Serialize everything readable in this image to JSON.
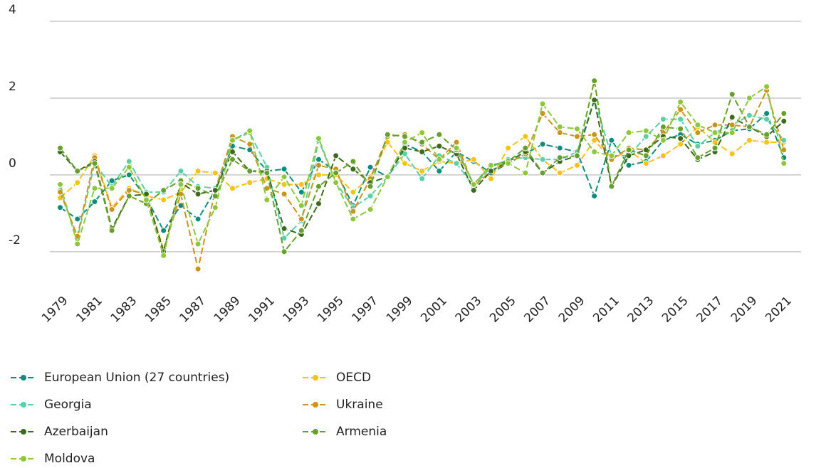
{
  "chart_data": {
    "type": "line",
    "x": [
      1979,
      1980,
      1981,
      1982,
      1983,
      1984,
      1985,
      1986,
      1987,
      1988,
      1989,
      1990,
      1991,
      1992,
      1993,
      1994,
      1995,
      1996,
      1997,
      1998,
      1999,
      2000,
      2001,
      2002,
      2003,
      2004,
      2005,
      2006,
      2007,
      2008,
      2009,
      2010,
      2011,
      2012,
      2013,
      2014,
      2015,
      2016,
      2017,
      2018,
      2019,
      2020,
      2021
    ],
    "xlim": [
      1978.4,
      2022
    ],
    "xticks": [
      1979,
      1981,
      1983,
      1985,
      1987,
      1989,
      1991,
      1993,
      1995,
      1997,
      1999,
      2001,
      2003,
      2005,
      2007,
      2009,
      2011,
      2013,
      2015,
      2017,
      2019,
      2021
    ],
    "ylim": [
      -2.8,
      4
    ],
    "yticks": [
      -2,
      0,
      2,
      4
    ],
    "grid": true,
    "line_style": "dashed",
    "legend": "bottom",
    "series": [
      {
        "name": "European Union (27 countries)",
        "color": "#0f8c7e",
        "values": [
          -0.85,
          -1.15,
          -0.7,
          -0.15,
          0.0,
          -0.6,
          -1.45,
          -0.8,
          -1.15,
          -0.4,
          0.75,
          0.65,
          0.1,
          0.15,
          -0.45,
          0.4,
          0.1,
          -0.8,
          0.2,
          -0.05,
          0.8,
          0.6,
          0.1,
          0.6,
          0.35,
          0.05,
          0.3,
          0.55,
          0.8,
          0.7,
          0.6,
          -0.55,
          0.9,
          0.25,
          0.35,
          0.9,
          1.05,
          0.8,
          0.9,
          1.15,
          1.2,
          1.6,
          0.45
        ]
      },
      {
        "name": "OECD",
        "color": "#f7c21a",
        "values": [
          -0.6,
          -0.2,
          0.5,
          -0.85,
          -0.35,
          -0.55,
          -0.65,
          -0.45,
          0.1,
          0.05,
          -0.35,
          -0.2,
          -0.1,
          -0.25,
          -0.25,
          0.0,
          0.0,
          -0.45,
          -0.05,
          0.85,
          0.3,
          0.1,
          0.35,
          0.3,
          0.4,
          -0.1,
          0.7,
          1.0,
          0.4,
          0.05,
          0.25,
          0.9,
          0.4,
          0.65,
          0.3,
          0.5,
          0.8,
          1.25,
          0.85,
          0.55,
          0.9,
          0.85,
          0.85
        ]
      },
      {
        "name": "Georgia",
        "color": "#5ccfa6",
        "values": [
          -0.4,
          -1.65,
          0.3,
          -0.3,
          0.35,
          -0.45,
          -0.45,
          0.1,
          -0.3,
          -0.35,
          0.9,
          1.1,
          0.2,
          -1.65,
          -1.2,
          0.9,
          -0.2,
          -0.85,
          -0.55,
          -0.05,
          0.55,
          -0.1,
          0.5,
          0.3,
          -0.3,
          0.2,
          0.4,
          0.45,
          0.4,
          0.4,
          0.6,
          1.95,
          0.5,
          0.5,
          1.0,
          1.45,
          1.45,
          0.75,
          1.1,
          1.3,
          1.55,
          1.45,
          0.9
        ]
      },
      {
        "name": "Ukraine",
        "color": "#c99520",
        "values": [
          -0.45,
          -1.6,
          0.45,
          -0.9,
          -0.4,
          -0.5,
          -1.95,
          -0.5,
          -2.45,
          -0.4,
          1.0,
          0.8,
          -0.35,
          -0.5,
          -1.15,
          0.25,
          0.15,
          -0.95,
          -0.1,
          1.0,
          1.05,
          0.8,
          0.4,
          0.85,
          -0.3,
          0.1,
          0.3,
          0.55,
          1.6,
          1.1,
          1.0,
          1.05,
          0.4,
          0.7,
          0.65,
          1.1,
          1.7,
          1.1,
          1.3,
          1.3,
          1.25,
          2.2,
          0.65
        ]
      },
      {
        "name": "Azerbaijan",
        "color": "#3e6a1f",
        "values": [
          0.6,
          0.1,
          0.35,
          -1.4,
          -0.55,
          -0.5,
          -2.0,
          -0.2,
          -0.5,
          -0.4,
          0.6,
          0.1,
          0.1,
          -1.4,
          -1.55,
          -0.75,
          0.5,
          0.15,
          -0.2,
          -0.05,
          0.7,
          0.6,
          0.75,
          0.55,
          -0.4,
          0.1,
          0.35,
          0.6,
          0.05,
          0.35,
          0.5,
          1.95,
          -0.3,
          0.5,
          0.65,
          1.0,
          0.95,
          0.4,
          0.6,
          1.5,
          1.25,
          1.0,
          1.4
        ]
      },
      {
        "name": "Armenia",
        "color": "#67a02c",
        "values": [
          0.7,
          0.1,
          0.3,
          -1.45,
          -0.55,
          -0.75,
          -0.4,
          -0.15,
          -0.35,
          -0.55,
          0.4,
          0.1,
          0.05,
          -2.0,
          -1.45,
          -0.3,
          0.05,
          0.35,
          -0.3,
          1.05,
          1.0,
          0.85,
          1.05,
          0.65,
          -0.25,
          0.25,
          0.35,
          0.7,
          0.05,
          0.45,
          0.5,
          2.45,
          -0.3,
          0.65,
          0.5,
          1.25,
          1.2,
          0.45,
          0.7,
          2.1,
          1.25,
          1.05,
          1.6
        ]
      },
      {
        "name": "Moldova",
        "color": "#8ec63f",
        "values": [
          -0.25,
          -1.8,
          -0.35,
          -0.35,
          0.2,
          -0.65,
          -2.1,
          -0.25,
          -1.8,
          -0.85,
          0.9,
          1.15,
          -0.65,
          -0.05,
          -0.8,
          0.95,
          -0.2,
          -1.15,
          -0.9,
          -0.05,
          0.85,
          1.1,
          0.4,
          0.7,
          -0.25,
          0.25,
          0.3,
          0.05,
          1.85,
          1.25,
          1.2,
          0.6,
          0.5,
          1.1,
          1.15,
          0.9,
          1.9,
          1.3,
          1.1,
          1.1,
          2.0,
          2.3,
          0.3
        ]
      }
    ]
  }
}
